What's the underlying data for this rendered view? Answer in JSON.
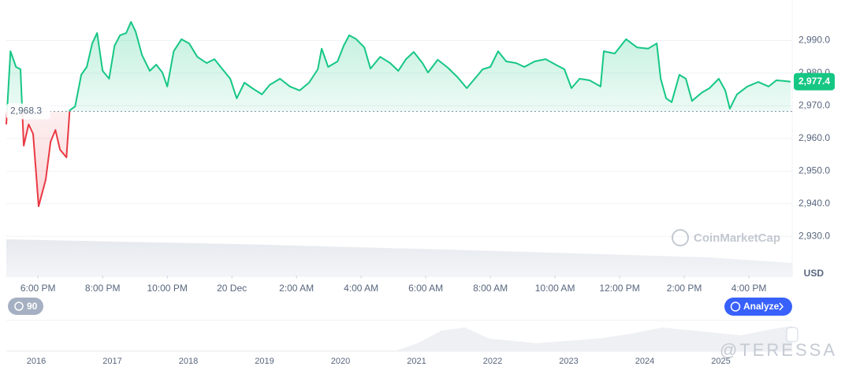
{
  "chart_data": {
    "type": "line",
    "x": [
      -0.98,
      -0.85,
      -0.68,
      -0.54,
      -0.44,
      -0.29,
      -0.15,
      0.02,
      0.24,
      0.39,
      0.54,
      0.68,
      0.88,
      0.98,
      1.15,
      1.34,
      1.51,
      1.68,
      1.83,
      2.0,
      2.2,
      2.37,
      2.54,
      2.73,
      2.88,
      3.02,
      3.22,
      3.46,
      3.66,
      3.85,
      4.0,
      4.2,
      4.44,
      4.68,
      4.93,
      5.22,
      5.46,
      5.71,
      5.95,
      6.15,
      6.39,
      6.63,
      6.93,
      7.17,
      7.49,
      7.8,
      8.1,
      8.39,
      8.66,
      8.78,
      8.98,
      9.27,
      9.46,
      9.63,
      9.85,
      10.1,
      10.29,
      10.59,
      10.9,
      11.15,
      11.39,
      11.63,
      11.9,
      12.07,
      12.37,
      12.68,
      12.98,
      13.27,
      13.56,
      13.76,
      14.0,
      14.24,
      14.49,
      14.8,
      15.05,
      15.37,
      15.71,
      16.02,
      16.29,
      16.51,
      16.76,
      17.07,
      17.41,
      17.51,
      17.85,
      18.2,
      18.54,
      18.88,
      19.15,
      19.27,
      19.44,
      19.61,
      19.85,
      20.05,
      20.24,
      20.54,
      20.78,
      21.07,
      21.27,
      21.41,
      21.63,
      21.95,
      22.29,
      22.61,
      22.85,
      23.1,
      23.29
    ],
    "values": [
      2964.3,
      2986.7,
      2981.9,
      2981.2,
      2957.8,
      2964.3,
      2961.4,
      2939.2,
      2947.4,
      2959.0,
      2962.6,
      2956.6,
      2954.2,
      2968.6,
      2969.8,
      2979.5,
      2981.9,
      2989.1,
      2992.3,
      2980.7,
      2978.3,
      2988.4,
      2991.6,
      2992.3,
      2995.7,
      2992.8,
      2985.5,
      2980.7,
      2982.6,
      2980.2,
      2975.9,
      2986.7,
      2990.4,
      2989.1,
      2985.0,
      2983.1,
      2984.3,
      2981.2,
      2978.3,
      2972.3,
      2977.1,
      2975.4,
      2973.5,
      2976.4,
      2978.3,
      2975.9,
      2974.7,
      2977.1,
      2981.2,
      2987.5,
      2981.9,
      2983.6,
      2988.4,
      2991.6,
      2990.4,
      2987.9,
      2981.4,
      2985.0,
      2983.1,
      2980.7,
      2984.3,
      2986.5,
      2983.1,
      2980.2,
      2984.1,
      2981.7,
      2978.8,
      2975.4,
      2978.8,
      2981.2,
      2981.9,
      2986.7,
      2983.6,
      2983.1,
      2981.9,
      2983.6,
      2984.3,
      2982.6,
      2981.2,
      2975.4,
      2978.3,
      2977.8,
      2975.9,
      2986.7,
      2986.0,
      2990.4,
      2987.9,
      2987.5,
      2989.1,
      2978.3,
      2972.3,
      2971.1,
      2979.5,
      2978.3,
      2971.5,
      2974.0,
      2975.4,
      2978.3,
      2974.7,
      2969.1,
      2973.5,
      2975.9,
      2977.3,
      2975.9,
      2977.8,
      2977.6,
      2977.4
    ],
    "up_color": "#16c784",
    "down_color": "#ea3943",
    "baseline": {
      "value": 2968.3,
      "label": "2,968.3"
    },
    "last_price": {
      "value": 2977.4,
      "label": "2,977.4"
    },
    "xlim": [
      -0.98,
      23.34
    ],
    "xticks": [
      {
        "value": 0,
        "label": "6:00 PM"
      },
      {
        "value": 2,
        "label": "8:00 PM"
      },
      {
        "value": 4,
        "label": "10:00 PM"
      },
      {
        "value": 6,
        "label": "20 Dec"
      },
      {
        "value": 8,
        "label": "2:00 AM"
      },
      {
        "value": 10,
        "label": "4:00 AM"
      },
      {
        "value": 12,
        "label": "6:00 AM"
      },
      {
        "value": 14,
        "label": "8:00 AM"
      },
      {
        "value": 16,
        "label": "10:00 AM"
      },
      {
        "value": 18,
        "label": "12:00 PM"
      },
      {
        "value": 20,
        "label": "2:00 PM"
      },
      {
        "value": 22,
        "label": "4:00 PM"
      }
    ],
    "ylim": [
      2918,
      3000
    ],
    "yticks": [
      {
        "value": 2930,
        "label": "2,930.0"
      },
      {
        "value": 2940,
        "label": "2,940.0"
      },
      {
        "value": 2950,
        "label": "2,950.0"
      },
      {
        "value": 2960,
        "label": "2,960.0"
      },
      {
        "value": 2970,
        "label": "2,970.0"
      },
      {
        "value": 2980,
        "label": "2,980.0"
      },
      {
        "value": 2990,
        "label": "2,990.0"
      }
    ],
    "grid": true,
    "currency": "USD",
    "source": "CoinMarketCap"
  },
  "controls": {
    "zoom": "90",
    "analyze": "Analyze"
  },
  "navigator": {
    "years": [
      "2016",
      "2017",
      "2018",
      "2019",
      "2020",
      "2021",
      "2022",
      "2023",
      "2024",
      "2025"
    ]
  },
  "watermark": "@TERESSA"
}
